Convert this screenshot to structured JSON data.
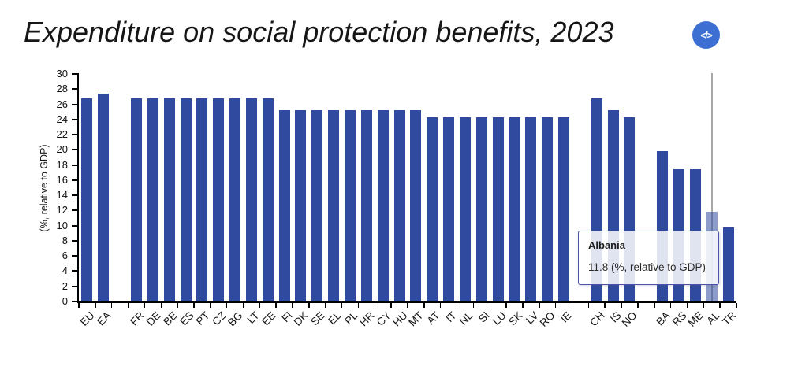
{
  "header": {
    "title": "Expenditure on social protection benefits, 2023",
    "embed_glyph": "</>"
  },
  "colors": {
    "bar": "#2f4a9e",
    "bar_highlight_rgba": "rgba(47,74,158,0.55)",
    "crosshair": "#a8a8a8",
    "tooltip_border": "#4c51a8",
    "axis": "#000000",
    "embed_button": "#3d6fd2"
  },
  "tooltip": {
    "title": "Albania",
    "value_text": "11.8 (%, relative to GDP)"
  },
  "chart_data": {
    "type": "bar",
    "title": "Expenditure on social protection benefits, 2023",
    "xlabel": "",
    "ylabel": "(%, relative to GDP)",
    "ylim": [
      0,
      30
    ],
    "yticks": [
      0,
      2,
      4,
      6,
      8,
      10,
      12,
      14,
      16,
      18,
      20,
      22,
      24,
      26,
      28,
      30
    ],
    "grid": false,
    "legend": false,
    "categories": [
      "EU",
      "EA",
      "",
      "FR",
      "DE",
      "BE",
      "ES",
      "PT",
      "CZ",
      "BG",
      "LT",
      "EE",
      "FI",
      "DK",
      "SE",
      "EL",
      "PL",
      "HR",
      "CY",
      "HU",
      "MT",
      "AT",
      "IT",
      "NL",
      "SI",
      "LU",
      "SK",
      "LV",
      "RO",
      "IE",
      "",
      "CH",
      "IS",
      "NO",
      "",
      "BA",
      "RS",
      "ME",
      "AL",
      "TR"
    ],
    "values": [
      26.8,
      27.4,
      null,
      26.8,
      26.8,
      26.8,
      26.8,
      26.8,
      26.8,
      26.8,
      26.8,
      26.8,
      25.2,
      25.2,
      25.2,
      25.2,
      25.2,
      25.2,
      25.2,
      25.2,
      25.2,
      24.3,
      24.3,
      24.3,
      24.3,
      24.3,
      24.3,
      24.3,
      24.3,
      24.3,
      null,
      26.8,
      25.2,
      24.3,
      null,
      19.8,
      17.4,
      17.4,
      11.8,
      9.8
    ],
    "highlight": {
      "category": "AL",
      "label": "Albania",
      "value": 11.8,
      "tooltip_line": "11.8 (%, relative to GDP)"
    }
  }
}
